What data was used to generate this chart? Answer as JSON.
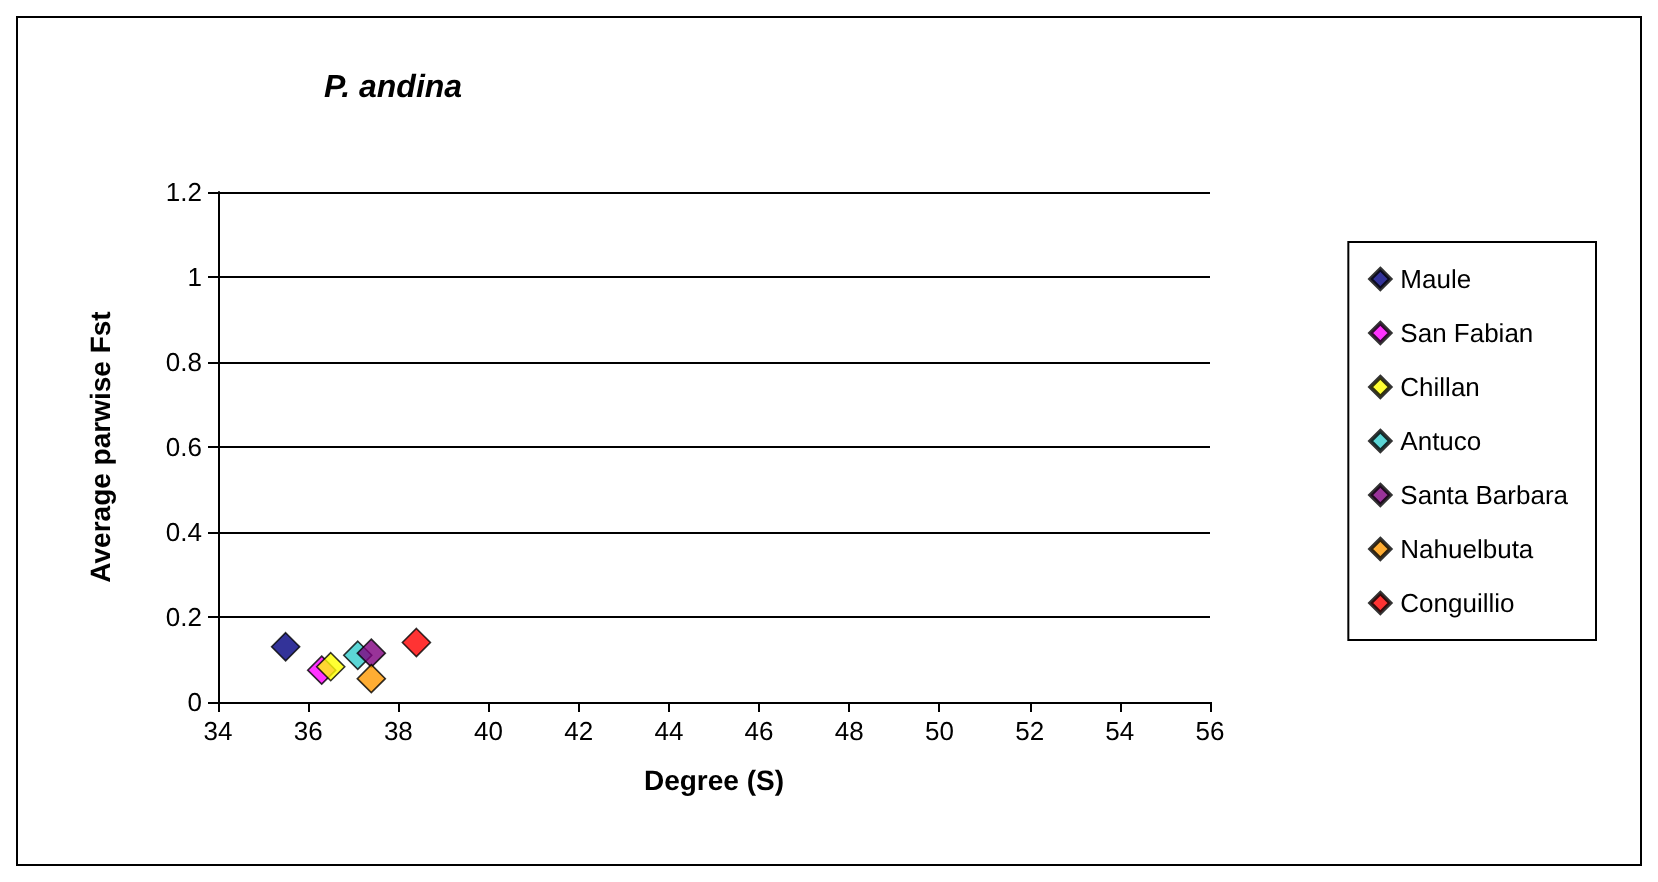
{
  "chart_data": {
    "type": "scatter",
    "title": "P. andina",
    "xlabel": "Degree (S)",
    "ylabel": "Average parwise Fst",
    "xlim": [
      34,
      56
    ],
    "xticks": [
      34,
      36,
      38,
      40,
      42,
      44,
      46,
      48,
      50,
      52,
      54,
      56
    ],
    "ylim": [
      0,
      1.2
    ],
    "yticks": [
      0,
      0.2,
      0.4,
      0.6,
      0.8,
      1,
      1.2
    ],
    "grid": "y",
    "legend": "right",
    "marker": "diamond",
    "series": [
      {
        "name": "Maule",
        "color": "#000080",
        "x": [
          35.5
        ],
        "values": [
          0.13
        ]
      },
      {
        "name": "San Fabian",
        "color": "#ff00ff",
        "x": [
          36.3
        ],
        "values": [
          0.075
        ]
      },
      {
        "name": "Chillan",
        "color": "#ffff00",
        "x": [
          36.5
        ],
        "values": [
          0.083
        ]
      },
      {
        "name": "Antuco",
        "color": "#33cccc",
        "x": [
          37.1
        ],
        "values": [
          0.11
        ]
      },
      {
        "name": "Santa Barbara",
        "color": "#800080",
        "x": [
          37.4
        ],
        "values": [
          0.115
        ]
      },
      {
        "name": "Nahuelbuta",
        "color": "#ff9900",
        "x": [
          37.4
        ],
        "values": [
          0.055
        ]
      },
      {
        "name": "Conguillio",
        "color": "#ff0000",
        "x": [
          38.4
        ],
        "values": [
          0.14
        ]
      }
    ]
  }
}
